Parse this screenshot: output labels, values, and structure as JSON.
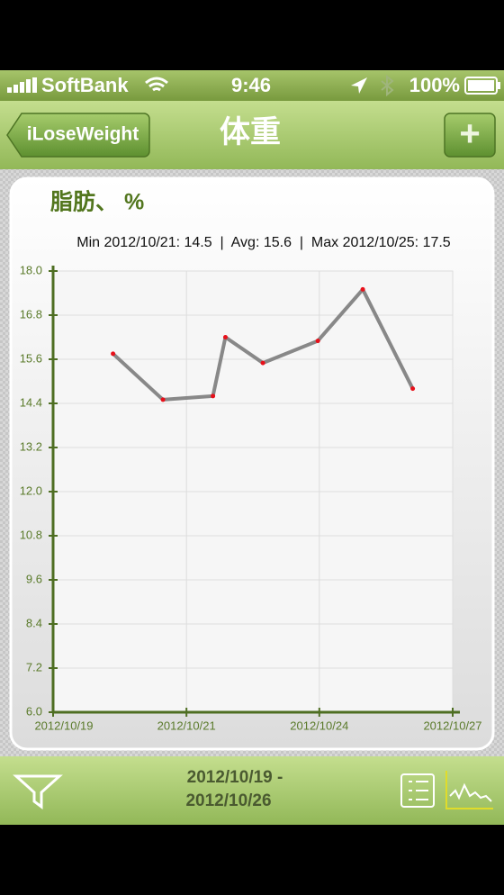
{
  "status_bar": {
    "carrier": "SoftBank",
    "time": "9:46",
    "battery": "100%"
  },
  "nav_bar": {
    "back_button": "iLoseWeight",
    "title": "体重",
    "add_button": "+"
  },
  "chart_data": {
    "type": "line",
    "title": "脂肪、 %",
    "stats": "Min 2012/10/21: 14.5  |  Avg: 15.6  |  Max 2012/10/25: 17.5",
    "x": [
      20.2,
      21.2,
      22.2,
      22.45,
      23.2,
      24.3,
      25.2,
      26.2
    ],
    "series": [
      {
        "color": "#888888",
        "marker_color": "#e8101a",
        "values": [
          15.75,
          14.5,
          14.6,
          16.2,
          15.5,
          16.1,
          17.5,
          14.8
        ]
      }
    ],
    "xlim": [
      19,
      27
    ],
    "xticks": [
      {
        "value": 19,
        "label": "2012/10/19"
      },
      {
        "value": 21.67,
        "label": "2012/10/21"
      },
      {
        "value": 24.33,
        "label": "2012/10/24"
      },
      {
        "value": 27,
        "label": "2012/10/27"
      }
    ],
    "ylim": [
      6,
      18
    ],
    "yticks": [
      {
        "value": 6,
        "label": "6.0"
      },
      {
        "value": 7.2,
        "label": "7.2"
      },
      {
        "value": 8.4,
        "label": "8.4"
      },
      {
        "value": 9.6,
        "label": "9.6"
      },
      {
        "value": 10.8,
        "label": "10.8"
      },
      {
        "value": 12,
        "label": "12.0"
      },
      {
        "value": 13.2,
        "label": "13.2"
      },
      {
        "value": 14.4,
        "label": "14.4"
      },
      {
        "value": 15.6,
        "label": "15.6"
      },
      {
        "value": 16.8,
        "label": "16.8"
      },
      {
        "value": 18,
        "label": "18.0"
      }
    ],
    "grid": true
  },
  "toolbar": {
    "date_range": [
      "2012/10/19 -",
      "2012/10/26"
    ]
  }
}
